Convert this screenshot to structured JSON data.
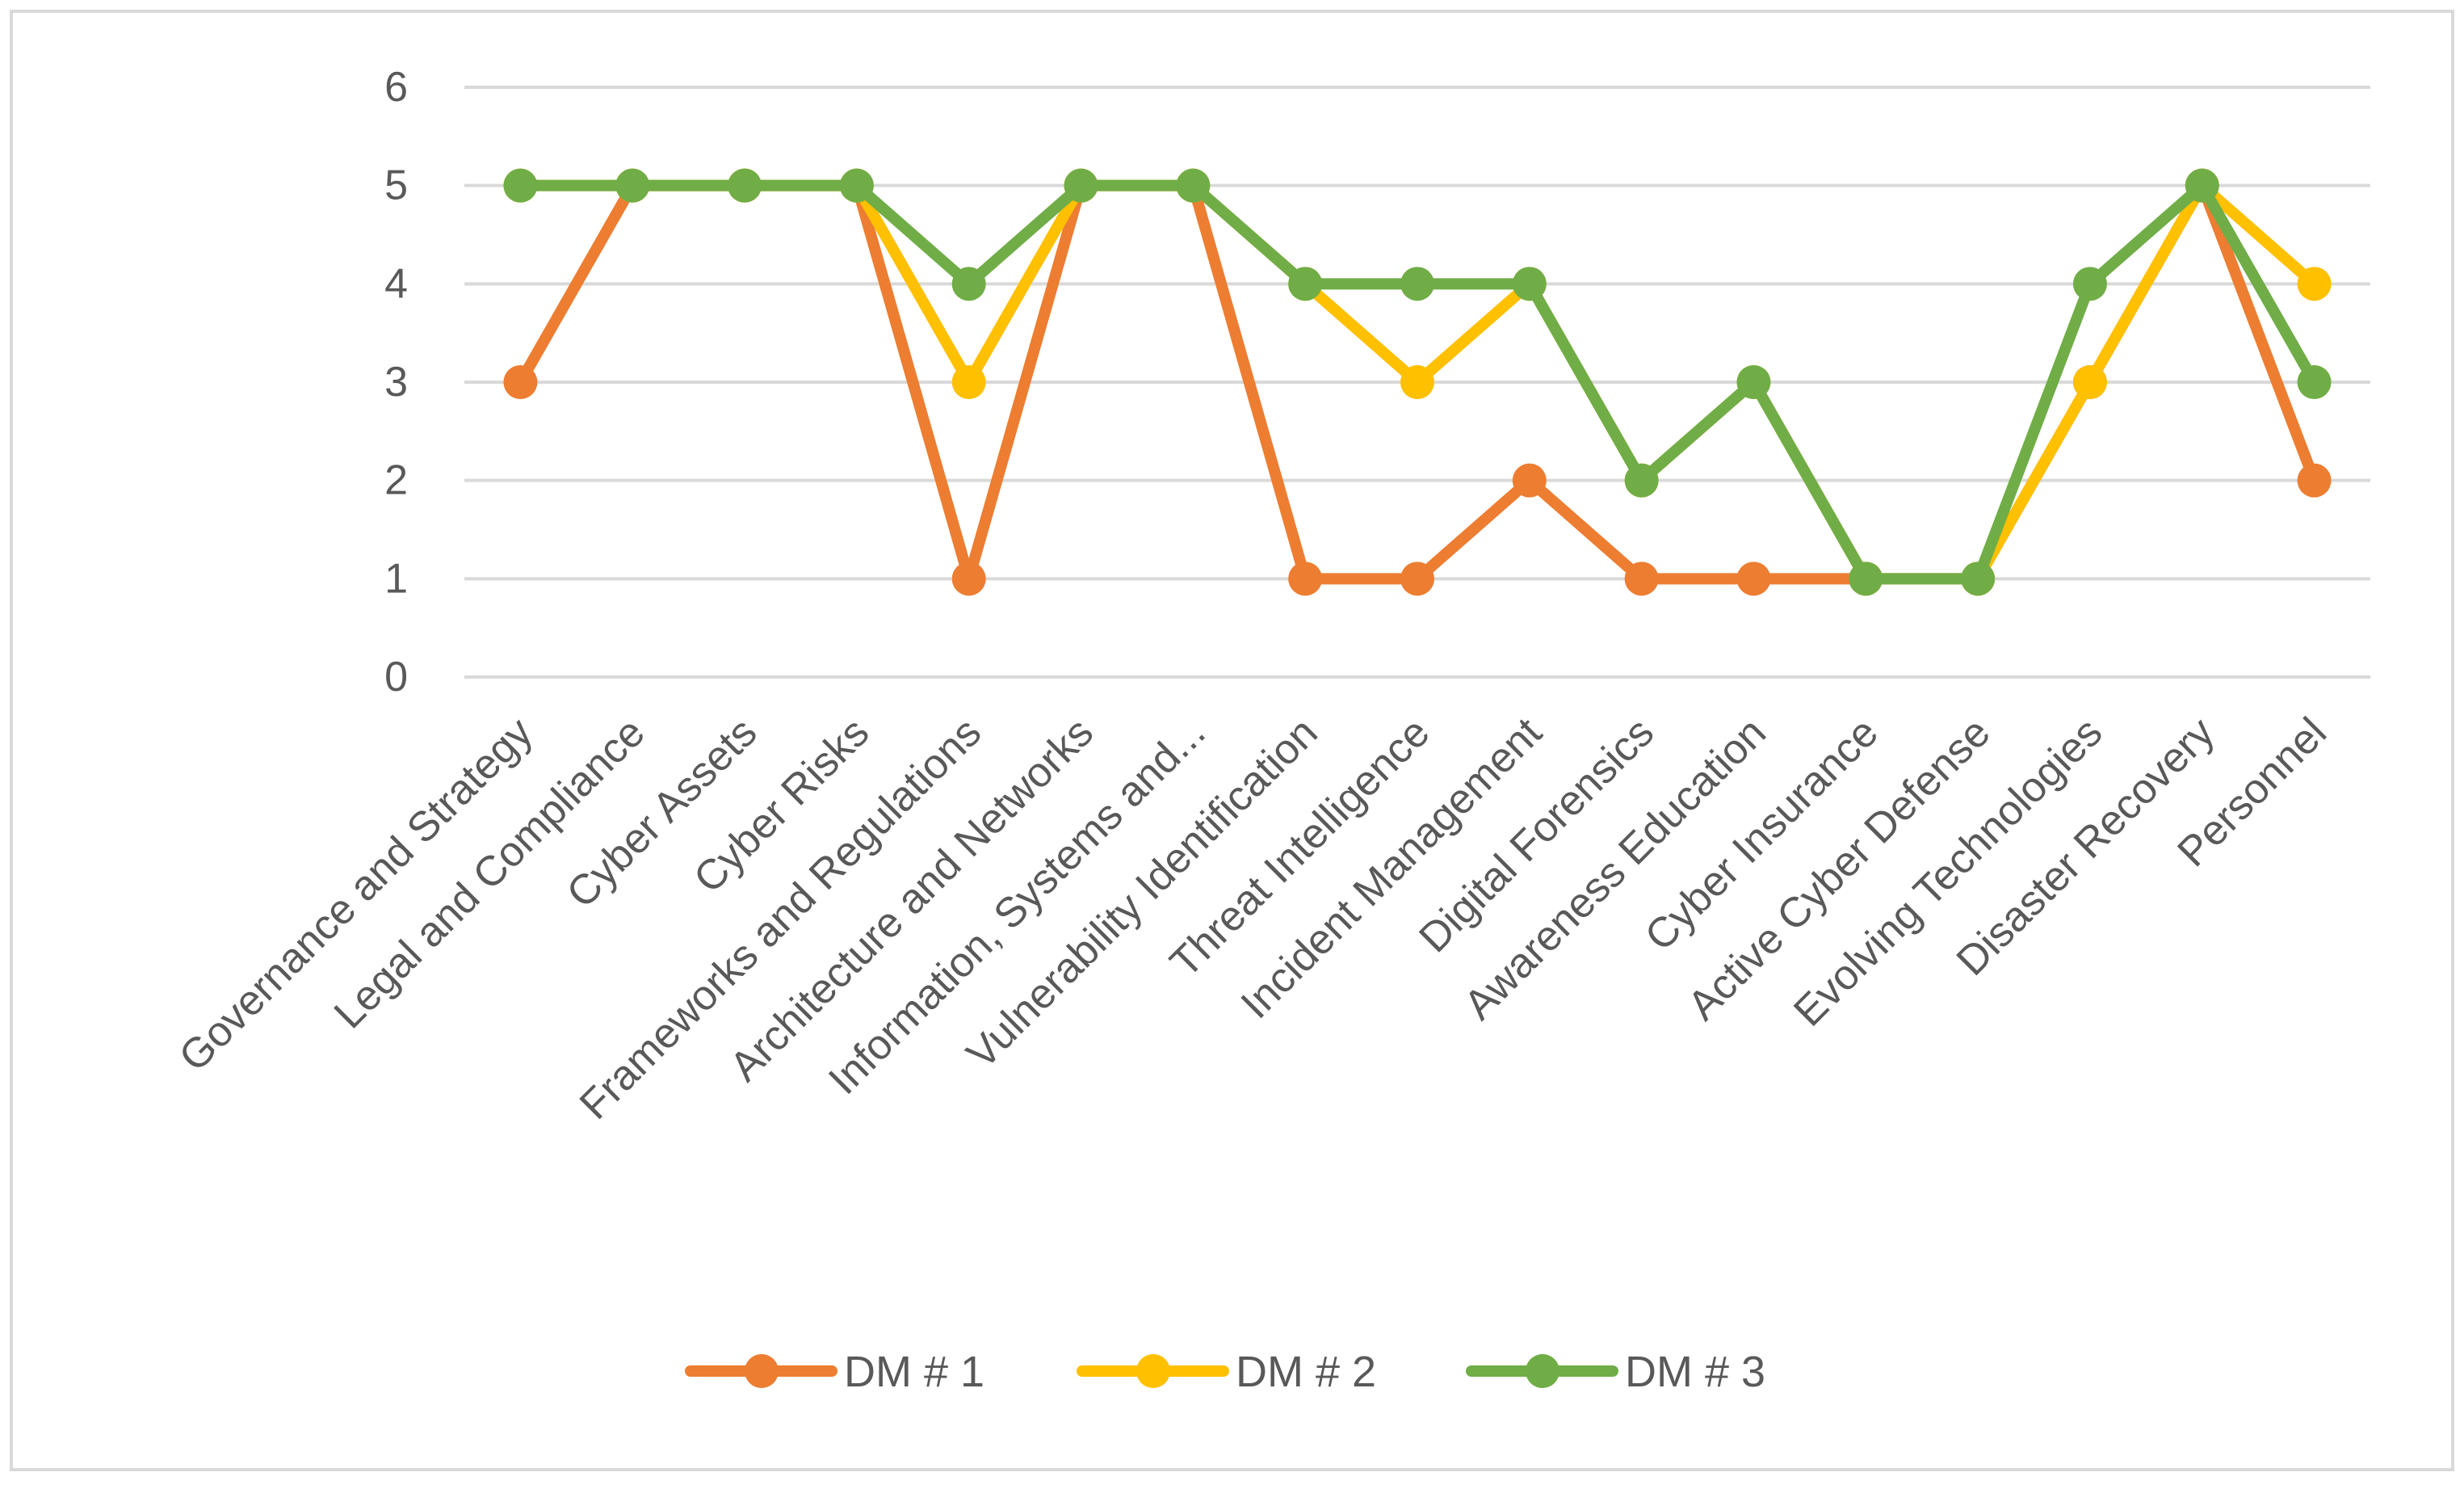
{
  "chart_data": {
    "type": "line",
    "title": "",
    "xlabel": "",
    "ylabel": "",
    "ylim": [
      0,
      6
    ],
    "yticks": [
      "0",
      "1",
      "2",
      "3",
      "4",
      "5",
      "6"
    ],
    "grid": true,
    "legend_position": "bottom",
    "categories": [
      "Governance and Strategy",
      "Legal and Compliance",
      "Cyber Assets",
      "Cyber Risks",
      "Frameworks and Regulations",
      "Architecture and Networks",
      "Information, Systems and...",
      "Vulnerability Identification",
      "Threat Intelligence",
      "Incident Management",
      "Digital Forensics",
      "Awareness Education",
      "Cyber Insurance",
      "Active Cyber Defense",
      "Evolving Technologies",
      "Disaster Recovery",
      "Personnel"
    ],
    "series": [
      {
        "name": "DM # 1",
        "color": "#ED7D31",
        "values": [
          3,
          5,
          5,
          5,
          1,
          5,
          5,
          1,
          1,
          2,
          1,
          1,
          1,
          1,
          3,
          5,
          2
        ]
      },
      {
        "name": "DM # 2",
        "color": "#FFC000",
        "values": [
          5,
          5,
          5,
          5,
          3,
          5,
          5,
          4,
          3,
          4,
          2,
          3,
          1,
          1,
          3,
          5,
          4
        ]
      },
      {
        "name": "DM # 3",
        "color": "#70AD47",
        "values": [
          5,
          5,
          5,
          5,
          4,
          5,
          5,
          4,
          4,
          4,
          2,
          3,
          1,
          1,
          4,
          5,
          3
        ]
      }
    ]
  }
}
